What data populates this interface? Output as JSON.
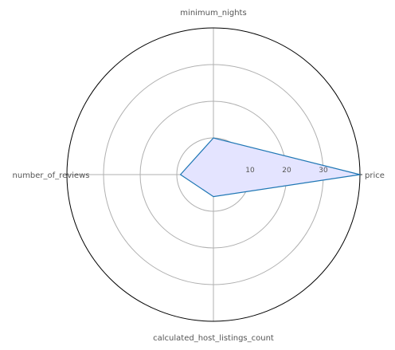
{
  "chart_data": {
    "type": "radar",
    "axes": [
      "price",
      "minimum_nights",
      "number_of_reviews",
      "calculated_host_listings_count"
    ],
    "rticks": [
      10,
      20,
      30
    ],
    "rlim": [
      0,
      40
    ],
    "grid": true,
    "series": [
      {
        "values": [
          40,
          10,
          9,
          6
        ]
      }
    ],
    "colors": {
      "line": "#1f77b4",
      "fill": "#e4e4ff",
      "grid": "#b0b0b0",
      "outer_circle": "#000000",
      "text": "#555555"
    }
  }
}
